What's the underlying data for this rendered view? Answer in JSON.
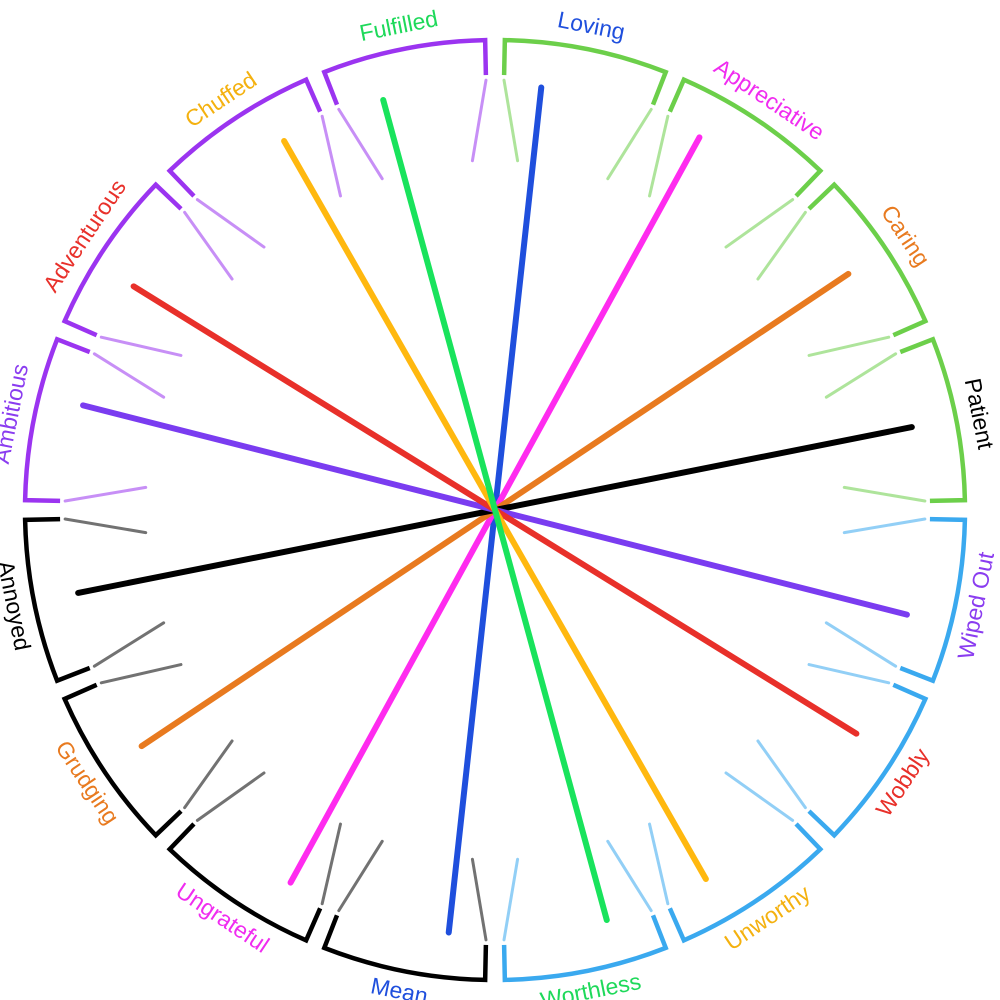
{
  "colors": {
    "black": "#000000",
    "green": "#6ccf4a",
    "blue": "#3aa9ef",
    "purple": "#9b34f0"
  },
  "groups": [
    {
      "name": "positive-green",
      "color": "#6ccf4a"
    },
    {
      "name": "negative-blue",
      "color": "#3aa9ef"
    },
    {
      "name": "negative-black",
      "color": "#000000"
    },
    {
      "name": "positive-purple",
      "color": "#9b34f0"
    }
  ],
  "pairs": [
    {
      "positive": "Loving",
      "negative": "Mean",
      "color": "#1f4fdd",
      "positive_color": "#1f4fdd",
      "negative_color": "#1f4fdd"
    },
    {
      "positive": "Appreciative",
      "negative": "Ungrateful",
      "color": "#ff2bef",
      "positive_color": "#f02cf0",
      "negative_color": "#f02cf0"
    },
    {
      "positive": "Caring",
      "negative": "Grudging",
      "color": "#e87a1f",
      "positive_color": "#e87a1f",
      "negative_color": "#e87a1f"
    },
    {
      "positive": "Patient",
      "negative": "Annoyed",
      "color": "#000000",
      "positive_color": "#000000",
      "negative_color": "#000000"
    },
    {
      "positive": "Ambitious",
      "negative": "Wiped Out",
      "color": "#7a3cf0",
      "positive_color": "#8a3cf0",
      "negative_color": "#8a3cf0"
    },
    {
      "positive": "Adventurous",
      "negative": "Wobbly",
      "color": "#e8302a",
      "positive_color": "#e8302a",
      "negative_color": "#e8302a"
    },
    {
      "positive": "Chuffed",
      "negative": "Unworthy",
      "color": "#ffb80f",
      "positive_color": "#f4b10f",
      "negative_color": "#f4b10f"
    },
    {
      "positive": "Fulfilled",
      "negative": "Worthless",
      "color": "#19e35c",
      "positive_color": "#1ed95a",
      "negative_color": "#1ed95a"
    }
  ]
}
